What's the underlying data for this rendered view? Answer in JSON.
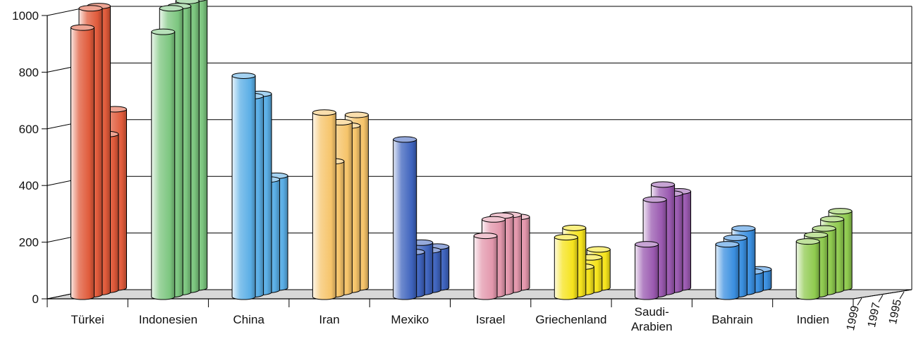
{
  "chart_data": {
    "type": "bar",
    "style": "3d-cylinder",
    "title": "",
    "xlabel": "",
    "ylabel": "",
    "ylim": [
      0,
      1000
    ],
    "yticks": [
      "0",
      "200",
      "400",
      "600",
      "800",
      "1000"
    ],
    "grid": true,
    "legend": "none",
    "depth_axis_labels": [
      "1999",
      "1997",
      "1995"
    ],
    "categories": [
      {
        "label": "Türkei",
        "color": "#e05a3a",
        "values": [
          950,
          1010,
          1010,
          550,
          630
        ]
      },
      {
        "label": "Indonesien",
        "color": "#7cc67f",
        "values": [
          935,
          1010,
          1010,
          1020,
          1020
        ]
      },
      {
        "label": "China",
        "color": "#5aaee6",
        "values": [
          780,
          700,
          700,
          390,
          395
        ]
      },
      {
        "label": "Iran",
        "color": "#f6c46a",
        "values": [
          650,
          470,
          600,
          580,
          610
        ]
      },
      {
        "label": "Mexiko",
        "color": "#3e63bd",
        "values": [
          555,
          150,
          175,
          140,
          145
        ]
      },
      {
        "label": "Israel",
        "color": "#e397ac",
        "values": [
          215,
          265,
          270,
          265,
          250
        ]
      },
      {
        "label": "Griechenland",
        "color": "#f5e31c",
        "values": [
          210,
          235,
          90,
          115,
          135
        ]
      },
      {
        "label": "Saudi-Arabien",
        "color": "#9a59b0",
        "values": [
          185,
          335,
          380,
          340,
          340
        ]
      },
      {
        "label": "Bahrain",
        "color": "#3a8fe0",
        "values": [
          185,
          200,
          225,
          65,
          65
        ]
      },
      {
        "label": "Indien",
        "color": "#8fca4f",
        "values": [
          195,
          210,
          225,
          250,
          270
        ]
      }
    ]
  }
}
